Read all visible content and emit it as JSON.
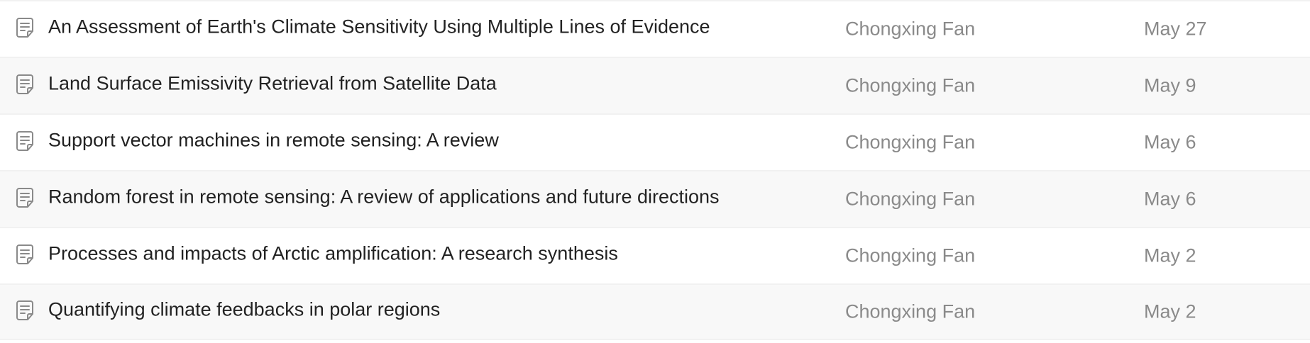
{
  "documents": [
    {
      "title": "An Assessment of Earth's Climate Sensitivity Using Multiple Lines of Evidence",
      "author": "Chongxing Fan",
      "date": "May 27",
      "icon": "document-icon"
    },
    {
      "title": "Land Surface Emissivity Retrieval from Satellite Data",
      "author": "Chongxing Fan",
      "date": "May 9",
      "icon": "document-icon"
    },
    {
      "title": "Support vector machines in remote sensing: A review",
      "author": "Chongxing Fan",
      "date": "May 6",
      "icon": "document-icon"
    },
    {
      "title": "Random forest in remote sensing: A review of applications and future directions",
      "author": "Chongxing Fan",
      "date": "May 6",
      "icon": "document-icon"
    },
    {
      "title": "Processes and impacts of Arctic amplification: A research synthesis",
      "author": "Chongxing Fan",
      "date": "May 2",
      "icon": "document-icon"
    },
    {
      "title": "Quantifying climate feedbacks in polar regions",
      "author": "Chongxing Fan",
      "date": "May 2",
      "icon": "document-icon"
    }
  ],
  "colors": {
    "row_alt_background": "#f8f8f8",
    "title_text": "#222222",
    "meta_text": "#8a8a8a",
    "icon_stroke": "#8a8a8a"
  }
}
